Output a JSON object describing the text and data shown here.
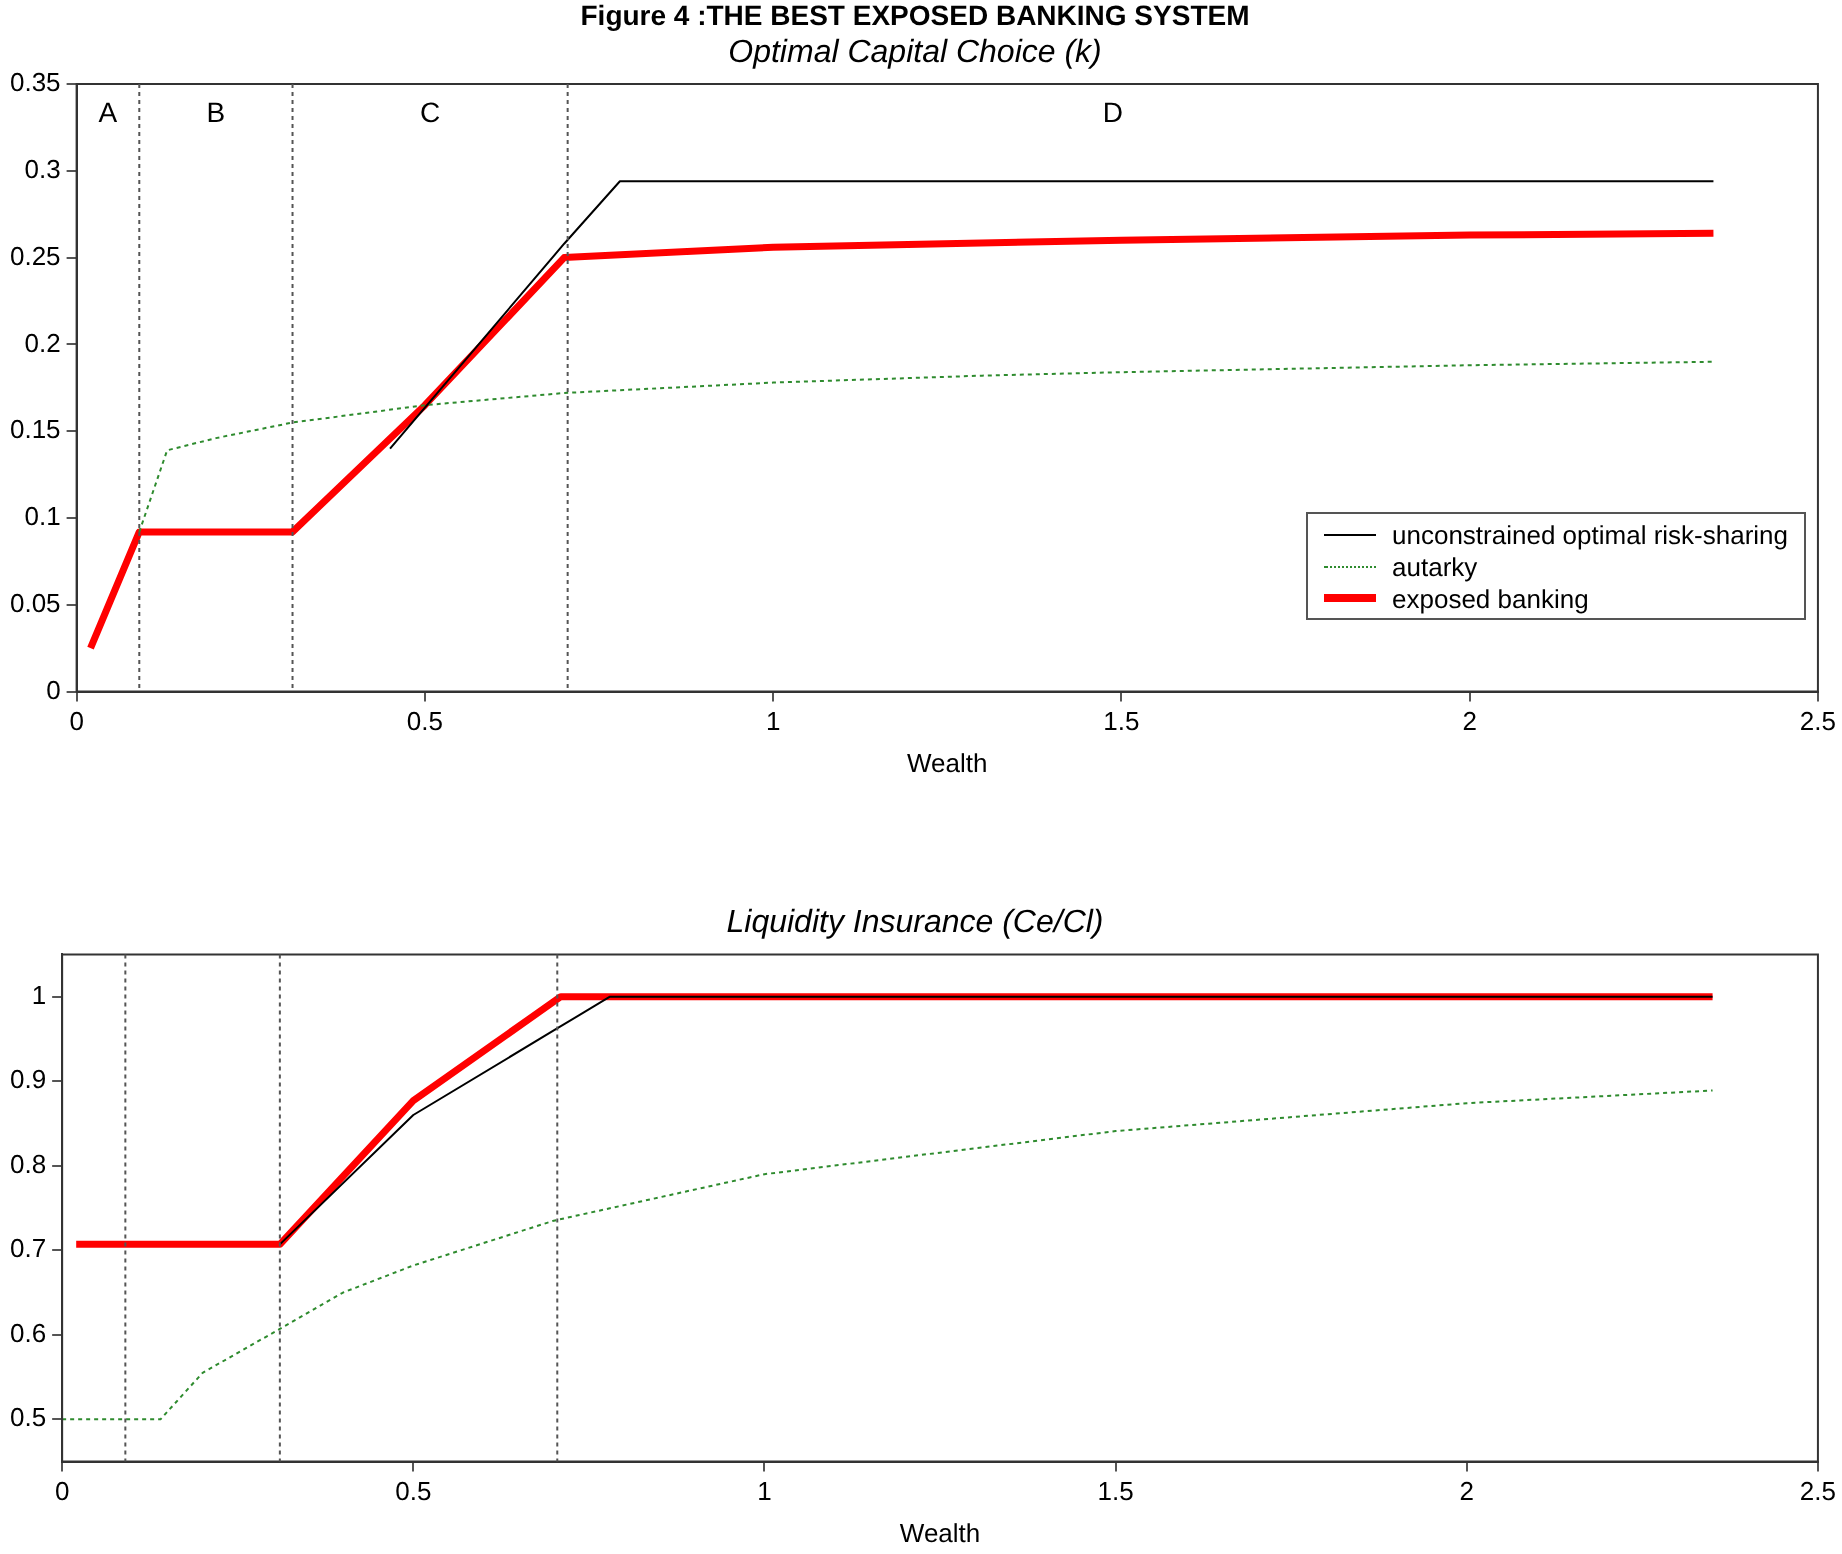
{
  "chart_data": [
    {
      "type": "line",
      "title": "Figure 4 :THE BEST EXPOSED BANKING SYSTEM",
      "subtitle": "Optimal Capital Choice (k)",
      "xlabel": "Wealth",
      "xlim": [
        0,
        2.5
      ],
      "xticks": [
        0,
        0.5,
        1,
        1.5,
        2,
        2.5
      ],
      "ylim": [
        0,
        0.35
      ],
      "yticks": [
        0,
        0.05,
        0.1,
        0.15,
        0.2,
        0.25,
        0.3,
        0.35
      ],
      "grid": false,
      "legend": "bottom right",
      "marker": "none",
      "series": [
        {
          "name": "unconstrained optimal risk-sharing",
          "color": "#000000",
          "line_style": "solid",
          "x": [
            0.45,
            0.7,
            0.78,
            2.35
          ],
          "values": [
            0.14,
            0.258,
            0.294,
            0.294
          ]
        },
        {
          "name": "autarky",
          "color": "#2e8b2e",
          "line_style": "dotted",
          "x": [
            0.09,
            0.13,
            0.2,
            0.31,
            0.5,
            0.7,
            1.0,
            1.3,
            1.5,
            2.0,
            2.35
          ],
          "values": [
            0.092,
            0.139,
            0.146,
            0.155,
            0.165,
            0.172,
            0.178,
            0.182,
            0.184,
            0.188,
            0.19
          ]
        },
        {
          "name": "exposed banking",
          "color": "#ff0000",
          "line_style": "solid",
          "x": [
            0.02,
            0.09,
            0.31,
            0.5,
            0.7,
            1.0,
            1.5,
            2.0,
            2.35
          ],
          "values": [
            0.025,
            0.092,
            0.092,
            0.165,
            0.25,
            0.256,
            0.26,
            0.263,
            0.264
          ]
        }
      ],
      "ref_lines": [
        {
          "axis": "x",
          "value": 0.09,
          "color": "#555555",
          "line_style": "dotted"
        },
        {
          "axis": "x",
          "value": 0.31,
          "color": "#555555",
          "line_style": "dotted"
        },
        {
          "axis": "x",
          "value": 0.705,
          "color": "#555555",
          "line_style": "dotted"
        }
      ],
      "annotations": [
        "A",
        "B",
        "C",
        "D"
      ]
    },
    {
      "type": "line",
      "subtitle": "Liquidity Insurance (Ce/Cl)",
      "xlabel": "Wealth",
      "xlim": [
        0,
        2.5
      ],
      "xticks": [
        0,
        0.5,
        1,
        1.5,
        2,
        2.5
      ],
      "ylim": [
        0.45,
        1.05
      ],
      "yticks": [
        0.5,
        0.6,
        0.7,
        0.8,
        0.9,
        1
      ],
      "grid": false,
      "marker": "none",
      "series": [
        {
          "color": "#000000",
          "line_style": "solid",
          "x": [
            0.31,
            0.5,
            0.7,
            0.78,
            2.35
          ],
          "values": [
            0.707,
            0.86,
            0.96,
            1.0,
            1.0
          ]
        },
        {
          "color": "#2e8b2e",
          "line_style": "dotted",
          "x": [
            0.0,
            0.14,
            0.2,
            0.31,
            0.4,
            0.5,
            0.7,
            1.0,
            1.5,
            2.0,
            2.35
          ],
          "values": [
            0.5,
            0.5,
            0.555,
            0.607,
            0.65,
            0.682,
            0.735,
            0.79,
            0.841,
            0.874,
            0.889
          ]
        },
        {
          "color": "#ff0000",
          "line_style": "solid",
          "x": [
            0.02,
            0.31,
            0.5,
            0.71,
            2.35
          ],
          "values": [
            0.707,
            0.707,
            0.877,
            1.0,
            1.0
          ]
        }
      ],
      "ref_lines": [
        {
          "axis": "x",
          "value": 0.09,
          "color": "#555555",
          "line_style": "dotted"
        },
        {
          "axis": "x",
          "value": 0.31,
          "color": "#555555",
          "line_style": "dotted"
        },
        {
          "axis": "x",
          "value": 0.705,
          "color": "#555555",
          "line_style": "dotted"
        }
      ]
    }
  ]
}
